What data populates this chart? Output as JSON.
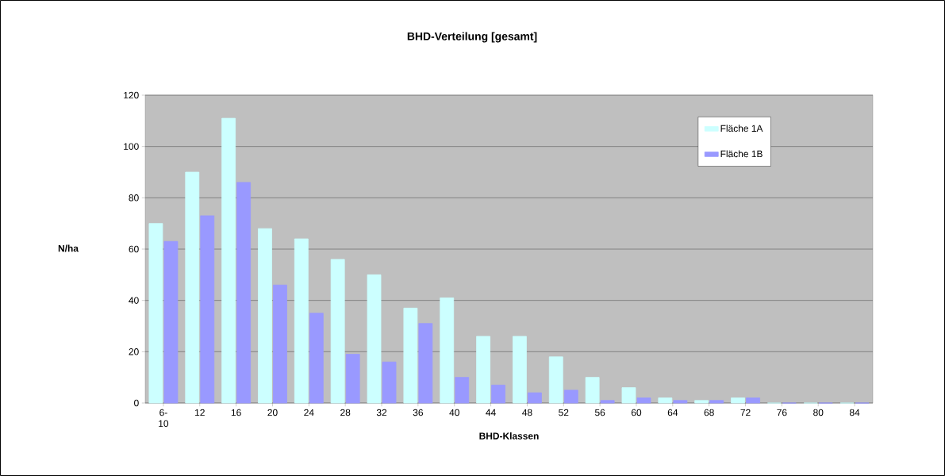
{
  "chart_data": {
    "type": "bar",
    "title": "BHD-Verteilung [gesamt]",
    "xlabel": "BHD-Klassen",
    "ylabel": "N/ha",
    "categories": [
      "6-10",
      "12",
      "16",
      "20",
      "24",
      "28",
      "32",
      "36",
      "40",
      "44",
      "48",
      "52",
      "56",
      "60",
      "64",
      "68",
      "72",
      "76",
      "80",
      "84"
    ],
    "series": [
      {
        "name": "Fläche 1A",
        "color": "#ccffff",
        "values": [
          70,
          90,
          111,
          68,
          64,
          56,
          50,
          37,
          41,
          26,
          26,
          18,
          10,
          6,
          2,
          1,
          2,
          0,
          0,
          0
        ]
      },
      {
        "name": "Fläche 1B",
        "color": "#9999ff",
        "values": [
          63,
          73,
          86,
          46,
          35,
          19,
          16,
          31,
          10,
          7,
          4,
          5,
          1,
          2,
          1,
          1,
          2,
          0,
          0,
          0
        ]
      }
    ],
    "ylim": [
      0,
      120
    ],
    "yticks": [
      0,
      20,
      40,
      60,
      80,
      100,
      120
    ],
    "grid": "y",
    "legend": "top right"
  }
}
